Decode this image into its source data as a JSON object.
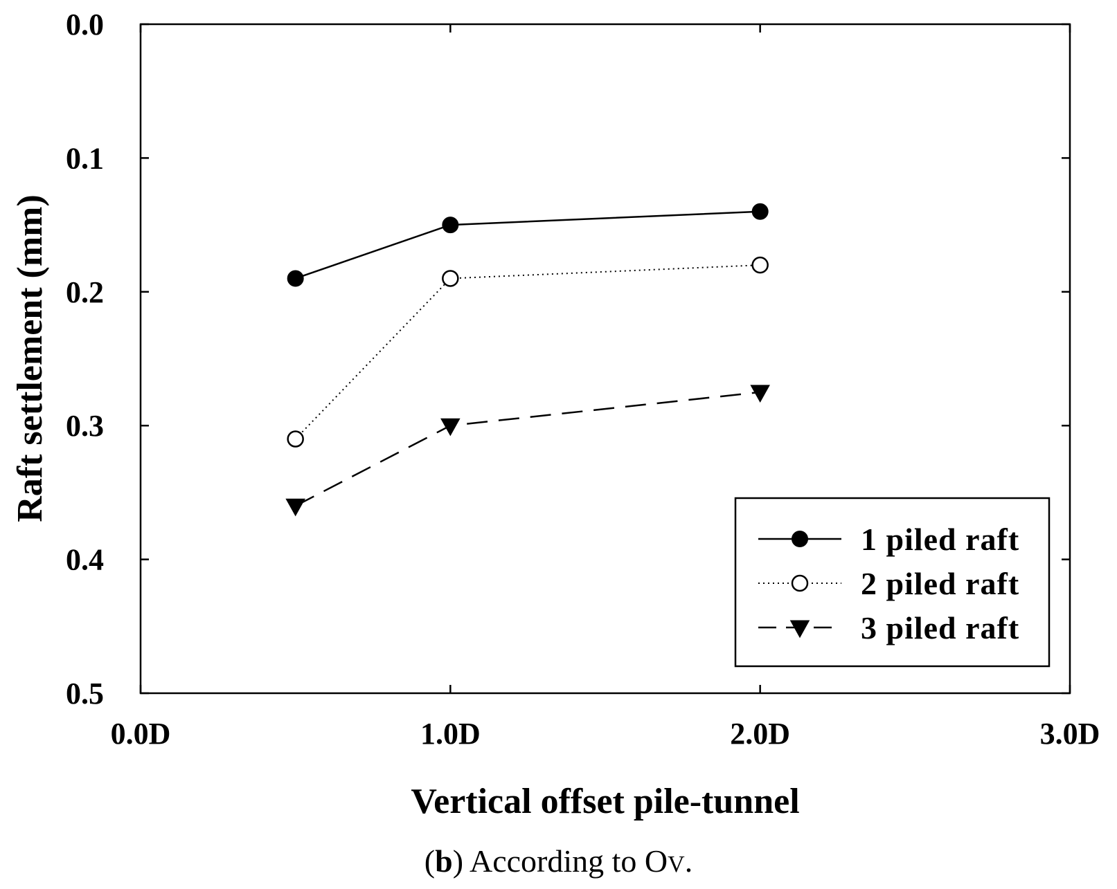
{
  "chart_data": {
    "type": "line",
    "title": "",
    "xlabel": "Vertical offset pile-tunnel",
    "ylabel": "Raft settlement (mm)",
    "xlim": [
      0,
      3
    ],
    "ylim": [
      0.0,
      0.5
    ],
    "y_inverted": true,
    "x_ticks": [
      0,
      1,
      2,
      3
    ],
    "x_tick_labels": [
      "0.0D",
      "1.0D",
      "2.0D",
      "3.0D"
    ],
    "y_ticks": [
      0.0,
      0.1,
      0.2,
      0.3,
      0.4,
      0.5
    ],
    "y_tick_labels": [
      "0.0",
      "0.1",
      "0.2",
      "0.3",
      "0.4",
      "0.5"
    ],
    "grid": false,
    "legend_position": "bottom-right",
    "series": [
      {
        "name": "1 piled raft",
        "marker": "filled-circle",
        "line": "solid",
        "x": [
          0.5,
          1.0,
          2.0
        ],
        "values": [
          0.19,
          0.15,
          0.14
        ]
      },
      {
        "name": "2 piled raft",
        "marker": "open-circle",
        "line": "dotted",
        "x": [
          0.5,
          1.0,
          2.0
        ],
        "values": [
          0.31,
          0.19,
          0.18
        ]
      },
      {
        "name": "3 piled raft",
        "marker": "filled-triangle-down",
        "line": "dashed",
        "x": [
          0.5,
          1.0,
          2.0
        ],
        "values": [
          0.36,
          0.3,
          0.275
        ]
      }
    ]
  },
  "caption": {
    "prefix": "(",
    "letter": "b",
    "text": ") According to O",
    "subscript": "V",
    "suffix": "."
  }
}
